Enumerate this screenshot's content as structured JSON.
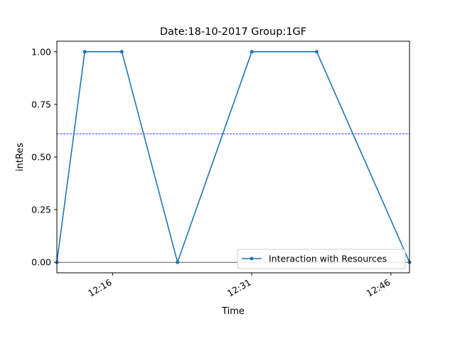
{
  "chart_data": {
    "type": "line",
    "title": "Date:18-10-2017  Group:1GF",
    "xlabel": "Time",
    "ylabel": "intRes",
    "x_range": [
      "12:10",
      "12:48"
    ],
    "ylim": [
      -0.05,
      1.05
    ],
    "x_ticks": [
      "12:16",
      "12:31",
      "12:46"
    ],
    "y_ticks": [
      "0.00",
      "0.25",
      "0.50",
      "0.75",
      "1.00"
    ],
    "y_tick_values": [
      0,
      0.25,
      0.5,
      0.75,
      1.0
    ],
    "series": [
      {
        "name": "Interaction with Resources",
        "color": "#1f77b4",
        "x": [
          "12:10",
          "12:13",
          "12:17",
          "12:23",
          "12:31",
          "12:38",
          "12:48"
        ],
        "values": [
          0,
          1,
          1,
          0,
          1,
          1,
          0
        ]
      }
    ],
    "reference_lines": [
      {
        "value": 0.61,
        "color": "#0000ff",
        "style": "dashed"
      },
      {
        "value": 0.0,
        "color": "#000000",
        "style": "solid"
      }
    ],
    "legend_position": "lower right",
    "grid": false
  }
}
